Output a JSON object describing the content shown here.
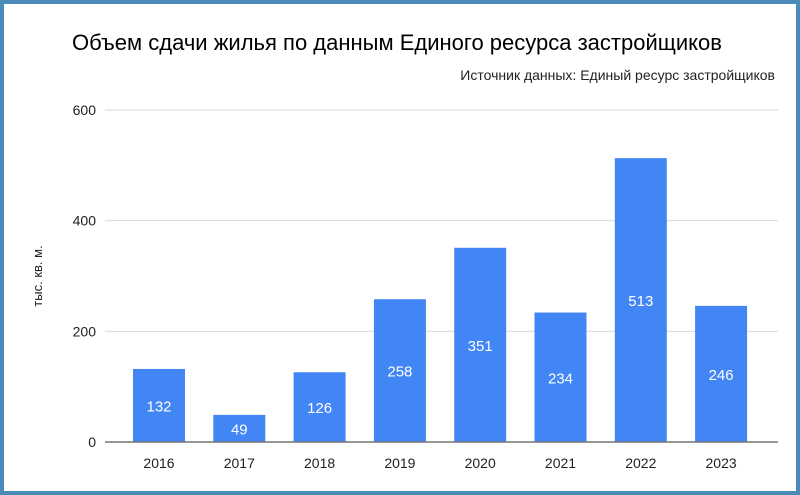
{
  "chart_data": {
    "type": "bar",
    "title": "Объем сдачи жилья по данным Единого ресурса застройщиков",
    "subtitle": "Источник данных: Единый ресурс застройщиков",
    "xlabel": "",
    "ylabel": "тыс. кв. м.",
    "categories": [
      "2016",
      "2017",
      "2018",
      "2019",
      "2020",
      "2021",
      "2022",
      "2023"
    ],
    "values": [
      132,
      49,
      126,
      258,
      351,
      234,
      513,
      246
    ],
    "data_labels": [
      "132",
      "49",
      "126",
      "258",
      "351",
      "234",
      "513",
      "246"
    ],
    "ylim": [
      0,
      600
    ],
    "yticks": [
      "0",
      "200",
      "400",
      "600"
    ],
    "grid": true,
    "legend": "none",
    "colors": {
      "bar": "#4285f4",
      "frame": "#4a8bb8",
      "grid": "#d9d9d9",
      "axis": "#757575"
    }
  }
}
